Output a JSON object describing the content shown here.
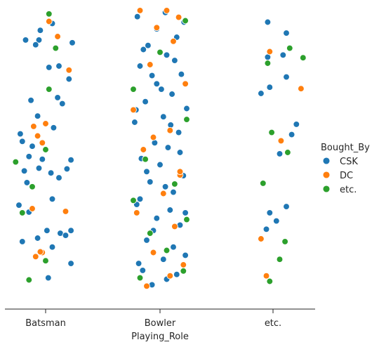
{
  "chart_data": {
    "type": "scatter",
    "title": "",
    "xlabel": "Playing_Role",
    "ylabel": "",
    "categories": [
      "Batsman",
      "Bowler",
      "etc."
    ],
    "grid": false,
    "legend": {
      "title": "Bought_By",
      "placement": "right",
      "entries": [
        {
          "label": "CSK",
          "color": "#1f77b4"
        },
        {
          "label": "DC",
          "color": "#ff7f0e"
        },
        {
          "label": "etc.",
          "color": "#2ca02c"
        }
      ]
    },
    "ylim": [
      0,
      420
    ],
    "series": [
      {
        "name": "CSK",
        "color": "#1f77b4",
        "points": [
          {
            "category": "Batsman",
            "jitter": 0.04,
            "y": 395
          },
          {
            "category": "Batsman",
            "jitter": -0.35,
            "y": 342
          },
          {
            "category": "Batsman",
            "jitter": 0.1,
            "y": 350
          },
          {
            "category": "Batsman",
            "jitter": 0.38,
            "y": 374
          },
          {
            "category": "Batsman",
            "jitter": -0.12,
            "y": 337
          },
          {
            "category": "Batsman",
            "jitter": 0.22,
            "y": 330
          },
          {
            "category": "Batsman",
            "jitter": -0.4,
            "y": 289
          },
          {
            "category": "Batsman",
            "jitter": 0.02,
            "y": 326
          },
          {
            "category": "Batsman",
            "jitter": -0.25,
            "y": 299
          },
          {
            "category": "Batsman",
            "jitter": 0.3,
            "y": 333
          },
          {
            "category": "Batsman",
            "jitter": 0.38,
            "y": 326
          },
          {
            "category": "Batsman",
            "jitter": 0.1,
            "y": 280
          },
          {
            "category": "Batsman",
            "jitter": -0.28,
            "y": 256
          },
          {
            "category": "Batsman",
            "jitter": 0.2,
            "y": 249
          },
          {
            "category": "Batsman",
            "jitter": -0.32,
            "y": 239
          },
          {
            "category": "Batsman",
            "jitter": 0.32,
            "y": 236
          },
          {
            "category": "Batsman",
            "jitter": -0.1,
            "y": 235
          },
          {
            "category": "Batsman",
            "jitter": 0.08,
            "y": 242
          },
          {
            "category": "Batsman",
            "jitter": -0.25,
            "y": 218
          },
          {
            "category": "Batsman",
            "jitter": -0.05,
            "y": 222
          },
          {
            "category": "Batsman",
            "jitter": 0.38,
            "y": 223
          },
          {
            "category": "Batsman",
            "jitter": -0.2,
            "y": 203
          },
          {
            "category": "Batsman",
            "jitter": -0.35,
            "y": 196
          },
          {
            "category": "Batsman",
            "jitter": -0.38,
            "y": 185
          },
          {
            "category": "Batsman",
            "jitter": 0.12,
            "y": 176
          },
          {
            "category": "Batsman",
            "jitter": -0.12,
            "y": 159
          },
          {
            "category": "Batsman",
            "jitter": 0.25,
            "y": 141
          },
          {
            "category": "Batsman",
            "jitter": 0.18,
            "y": 132
          },
          {
            "category": "Batsman",
            "jitter": -0.22,
            "y": 136
          },
          {
            "category": "Batsman",
            "jitter": 0.4,
            "y": 52
          },
          {
            "category": "Batsman",
            "jitter": -0.3,
            "y": 48
          },
          {
            "category": "Batsman",
            "jitter": -0.1,
            "y": 48
          },
          {
            "category": "Batsman",
            "jitter": 0.35,
            "y": 105
          },
          {
            "category": "Batsman",
            "jitter": 0.2,
            "y": 86
          },
          {
            "category": "Batsman",
            "jitter": 0.05,
            "y": 88
          },
          {
            "category": "Batsman",
            "jitter": -0.15,
            "y": 55
          },
          {
            "category": "Batsman",
            "jitter": -0.08,
            "y": 34
          },
          {
            "category": "Batsman",
            "jitter": 0.1,
            "y": 24
          },
          {
            "category": "Bowler",
            "jitter": -0.12,
            "y": 405
          },
          {
            "category": "Bowler",
            "jitter": 0.1,
            "y": 397
          },
          {
            "category": "Bowler",
            "jitter": 0.25,
            "y": 390
          },
          {
            "category": "Bowler",
            "jitter": -0.32,
            "y": 374
          },
          {
            "category": "Bowler",
            "jitter": 0.05,
            "y": 368
          },
          {
            "category": "Bowler",
            "jitter": 0.38,
            "y": 362
          },
          {
            "category": "Bowler",
            "jitter": -0.2,
            "y": 340
          },
          {
            "category": "Bowler",
            "jitter": 0.3,
            "y": 318
          },
          {
            "category": "Bowler",
            "jitter": -0.05,
            "y": 308
          },
          {
            "category": "Bowler",
            "jitter": 0.15,
            "y": 296
          },
          {
            "category": "Bowler",
            "jitter": -0.35,
            "y": 288
          },
          {
            "category": "Bowler",
            "jitter": 0.2,
            "y": 270
          },
          {
            "category": "Bowler",
            "jitter": -0.15,
            "y": 255
          },
          {
            "category": "Bowler",
            "jitter": 0.35,
            "y": 246
          },
          {
            "category": "Bowler",
            "jitter": 0.0,
            "y": 230
          },
          {
            "category": "Bowler",
            "jitter": -0.28,
            "y": 221
          },
          {
            "category": "Bowler",
            "jitter": 0.12,
            "y": 205
          },
          {
            "category": "Bowler",
            "jitter": -0.1,
            "y": 190
          },
          {
            "category": "Bowler",
            "jitter": 0.28,
            "y": 183
          },
          {
            "category": "Bowler",
            "jitter": -0.38,
            "y": 168
          },
          {
            "category": "Bowler",
            "jitter": 0.05,
            "y": 160
          },
          {
            "category": "Bowler",
            "jitter": 0.4,
            "y": 148
          },
          {
            "category": "Bowler",
            "jitter": -0.22,
            "y": 138
          },
          {
            "category": "Bowler",
            "jitter": 0.18,
            "y": 127
          },
          {
            "category": "Bowler",
            "jitter": -0.05,
            "y": 112
          },
          {
            "category": "Bowler",
            "jitter": 0.32,
            "y": 98
          },
          {
            "category": "Bowler",
            "jitter": -0.3,
            "y": 86
          },
          {
            "category": "Bowler",
            "jitter": 0.1,
            "y": 70
          },
          {
            "category": "Bowler",
            "jitter": -0.18,
            "y": 56
          },
          {
            "category": "Bowler",
            "jitter": 0.25,
            "y": 44
          },
          {
            "category": "Bowler",
            "jitter": -0.05,
            "y": 32
          },
          {
            "category": "Bowler",
            "jitter": 0.36,
            "y": 22
          },
          {
            "category": "Bowler",
            "jitter": -0.34,
            "y": 14
          },
          {
            "category": "Bowler",
            "jitter": 0.08,
            "y": 8
          },
          {
            "category": "Bowler",
            "jitter": -0.25,
            "y": 62
          },
          {
            "category": "Bowler",
            "jitter": 0.22,
            "y": 78
          },
          {
            "category": "Bowler",
            "jitter": -0.12,
            "y": 100
          },
          {
            "category": "Bowler",
            "jitter": 0.02,
            "y": 120
          },
          {
            "category": "Bowler",
            "jitter": -0.36,
            "y": 150
          },
          {
            "category": "Bowler",
            "jitter": 0.16,
            "y": 172
          },
          {
            "category": "Bowler",
            "jitter": -0.08,
            "y": 198
          },
          {
            "category": "Bowler",
            "jitter": 0.3,
            "y": 212
          },
          {
            "category": "Bowler",
            "jitter": -0.2,
            "y": 240
          },
          {
            "category": "Bowler",
            "jitter": 0.08,
            "y": 262
          },
          {
            "category": "Bowler",
            "jitter": -0.3,
            "y": 280
          },
          {
            "category": "Bowler",
            "jitter": 0.38,
            "y": 300
          },
          {
            "category": "Bowler",
            "jitter": -0.1,
            "y": 326
          },
          {
            "category": "Bowler",
            "jitter": 0.2,
            "y": 350
          },
          {
            "category": "Bowler",
            "jitter": -0.26,
            "y": 384
          },
          {
            "category": "etc.",
            "jitter": -0.1,
            "y": 324
          },
          {
            "category": "etc.",
            "jitter": 0.05,
            "y": 312
          },
          {
            "category": "etc.",
            "jitter": -0.05,
            "y": 300
          },
          {
            "category": "etc.",
            "jitter": 0.2,
            "y": 291
          },
          {
            "category": "etc.",
            "jitter": 0.1,
            "y": 214
          },
          {
            "category": "etc.",
            "jitter": 0.28,
            "y": 186
          },
          {
            "category": "etc.",
            "jitter": 0.35,
            "y": 171
          },
          {
            "category": "etc.",
            "jitter": -0.18,
            "y": 126
          },
          {
            "category": "etc.",
            "jitter": -0.05,
            "y": 117
          },
          {
            "category": "etc.",
            "jitter": 0.2,
            "y": 102
          },
          {
            "category": "etc.",
            "jitter": -0.08,
            "y": 73
          },
          {
            "category": "etc.",
            "jitter": 0.15,
            "y": 70
          },
          {
            "category": "etc.",
            "jitter": 0.2,
            "y": 38
          },
          {
            "category": "etc.",
            "jitter": -0.08,
            "y": 22
          }
        ]
      },
      {
        "name": "DC",
        "color": "#ff7f0e",
        "points": [
          {
            "category": "Batsman",
            "jitter": -0.15,
            "y": 364
          },
          {
            "category": "Batsman",
            "jitter": -0.05,
            "y": 358
          },
          {
            "category": "Batsman",
            "jitter": -0.08,
            "y": 357
          },
          {
            "category": "Batsman",
            "jitter": -0.2,
            "y": 294
          },
          {
            "category": "Batsman",
            "jitter": 0.3,
            "y": 298
          },
          {
            "category": "Batsman",
            "jitter": 0.35,
            "y": 92
          },
          {
            "category": "Batsman",
            "jitter": -0.18,
            "y": 174
          },
          {
            "category": "Batsman",
            "jitter": 0.0,
            "y": 170
          },
          {
            "category": "Batsman",
            "jitter": -0.12,
            "y": 188
          },
          {
            "category": "Batsman",
            "jitter": -0.05,
            "y": 198
          },
          {
            "category": "Batsman",
            "jitter": 0.18,
            "y": 43
          },
          {
            "category": "Batsman",
            "jitter": 0.05,
            "y": 21
          },
          {
            "category": "Bowler",
            "jitter": -0.2,
            "y": 407
          },
          {
            "category": "Bowler",
            "jitter": 0.15,
            "y": 392
          },
          {
            "category": "Bowler",
            "jitter": 0.35,
            "y": 376
          },
          {
            "category": "Bowler",
            "jitter": -0.1,
            "y": 358
          },
          {
            "category": "Bowler",
            "jitter": 0.22,
            "y": 320
          },
          {
            "category": "Bowler",
            "jitter": -0.35,
            "y": 300
          },
          {
            "category": "Bowler",
            "jitter": 0.05,
            "y": 272
          },
          {
            "category": "Bowler",
            "jitter": 0.3,
            "y": 245
          },
          {
            "category": "Bowler",
            "jitter": -0.25,
            "y": 208
          },
          {
            "category": "Bowler",
            "jitter": 0.15,
            "y": 180
          },
          {
            "category": "Bowler",
            "jitter": -0.4,
            "y": 150
          },
          {
            "category": "Bowler",
            "jitter": 0.38,
            "y": 112
          },
          {
            "category": "Bowler",
            "jitter": -0.15,
            "y": 84
          },
          {
            "category": "Bowler",
            "jitter": 0.2,
            "y": 50
          },
          {
            "category": "Bowler",
            "jitter": -0.05,
            "y": 30
          },
          {
            "category": "Bowler",
            "jitter": 0.28,
            "y": 15
          },
          {
            "category": "Bowler",
            "jitter": -0.3,
            "y": 5
          },
          {
            "category": "Bowler",
            "jitter": 0.1,
            "y": 5
          },
          {
            "category": "Bowler",
            "jitter": -0.1,
            "y": 190
          },
          {
            "category": "Bowler",
            "jitter": 0.3,
            "y": 240
          },
          {
            "category": "etc.",
            "jitter": -0.1,
            "y": 392
          },
          {
            "category": "etc.",
            "jitter": -0.18,
            "y": 338
          },
          {
            "category": "etc.",
            "jitter": 0.12,
            "y": 195
          },
          {
            "category": "etc.",
            "jitter": 0.42,
            "y": 119
          },
          {
            "category": "etc.",
            "jitter": -0.05,
            "y": 65
          }
        ]
      },
      {
        "name": "etc.",
        "color": "#2ca02c",
        "points": [
          {
            "category": "Batsman",
            "jitter": -0.25,
            "y": 398
          },
          {
            "category": "Batsman",
            "jitter": 0.0,
            "y": 370
          },
          {
            "category": "Batsman",
            "jitter": -0.35,
            "y": 300
          },
          {
            "category": "Batsman",
            "jitter": -0.2,
            "y": 262
          },
          {
            "category": "Batsman",
            "jitter": 0.0,
            "y": 208
          },
          {
            "category": "Batsman",
            "jitter": -0.45,
            "y": 226
          },
          {
            "category": "Batsman",
            "jitter": 0.05,
            "y": 120
          },
          {
            "category": "Batsman",
            "jitter": 0.15,
            "y": 60
          },
          {
            "category": "Batsman",
            "jitter": 0.05,
            "y": 10
          },
          {
            "category": "Bowler",
            "jitter": -0.3,
            "y": 395
          },
          {
            "category": "Bowler",
            "jitter": 0.35,
            "y": 385
          },
          {
            "category": "Bowler",
            "jitter": 0.1,
            "y": 355
          },
          {
            "category": "Bowler",
            "jitter": -0.15,
            "y": 330
          },
          {
            "category": "Bowler",
            "jitter": 0.4,
            "y": 310
          },
          {
            "category": "Bowler",
            "jitter": -0.4,
            "y": 282
          },
          {
            "category": "Bowler",
            "jitter": 0.22,
            "y": 258
          },
          {
            "category": "Bowler",
            "jitter": -0.22,
            "y": 222
          },
          {
            "category": "Bowler",
            "jitter": 0.4,
            "y": 164
          },
          {
            "category": "Bowler",
            "jitter": -0.4,
            "y": 120
          },
          {
            "category": "Bowler",
            "jitter": 0.0,
            "y": 66
          },
          {
            "category": "Bowler",
            "jitter": 0.38,
            "y": 20
          },
          {
            "category": "etc.",
            "jitter": -0.05,
            "y": 400
          },
          {
            "category": "etc.",
            "jitter": 0.1,
            "y": 368
          },
          {
            "category": "etc.",
            "jitter": 0.18,
            "y": 342
          },
          {
            "category": "etc.",
            "jitter": -0.15,
            "y": 257
          },
          {
            "category": "etc.",
            "jitter": 0.22,
            "y": 212
          },
          {
            "category": "etc.",
            "jitter": -0.02,
            "y": 183
          },
          {
            "category": "etc.",
            "jitter": -0.08,
            "y": 82
          },
          {
            "category": "etc.",
            "jitter": 0.25,
            "y": 60
          },
          {
            "category": "etc.",
            "jitter": 0.45,
            "y": 74
          }
        ]
      }
    ]
  }
}
